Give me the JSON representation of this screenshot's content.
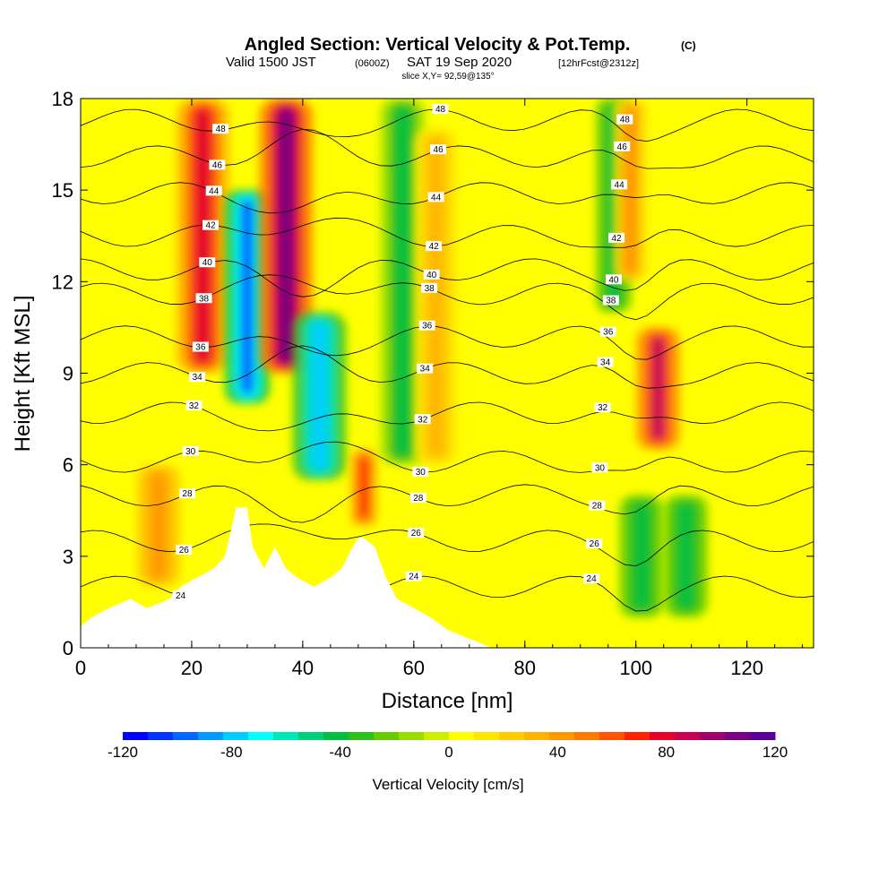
{
  "chart_data": {
    "type": "heatmap",
    "title": "Angled Section: Vertical Velocity & Pot.Temp.",
    "title_units": "(C)",
    "subtitle": {
      "valid_prefix": "Valid 1500 JST",
      "utc": "(0600Z)",
      "date": "SAT 19 Sep 2020",
      "forecast": "[12hrFcst@2312z]"
    },
    "slice": "slice X,Y= 92,59@135°",
    "xlabel": "Distance [nm]",
    "ylabel": "Height [Kft MSL]",
    "xlim": [
      0,
      132
    ],
    "ylim": [
      0,
      18
    ],
    "x_ticks": [
      "0",
      "20",
      "40",
      "60",
      "80",
      "100",
      "120"
    ],
    "x_tick_values": [
      0,
      20,
      40,
      60,
      80,
      100,
      120
    ],
    "y_ticks": [
      "0",
      "3",
      "6",
      "9",
      "12",
      "15",
      "18"
    ],
    "y_tick_values": [
      0,
      3,
      6,
      9,
      12,
      15,
      18
    ],
    "colorbar": {
      "label": "Vertical Velocity [cm/s]",
      "range": [
        -120,
        120
      ],
      "tick_labels": [
        "-120",
        "-80",
        "-40",
        "0",
        "40",
        "80",
        "120"
      ],
      "tick_values": [
        -120,
        -80,
        -40,
        0,
        40,
        80,
        120
      ],
      "colors": [
        "#0000ff",
        "#0033ff",
        "#0066ff",
        "#0099ff",
        "#00ccff",
        "#00ffff",
        "#00e6b8",
        "#00d07a",
        "#00bf40",
        "#2dbf1c",
        "#66cc00",
        "#99dd00",
        "#ccee00",
        "#ffff00",
        "#ffe600",
        "#ffcc00",
        "#ffb300",
        "#ff9900",
        "#ff7a00",
        "#ff5500",
        "#ff2200",
        "#e6002b",
        "#c80055",
        "#a0006e",
        "#780082",
        "#5a0096"
      ]
    },
    "theta_contours": [
      {
        "value": 24,
        "height_kft": 2.0,
        "label": "24"
      },
      {
        "value": 26,
        "height_kft": 3.5,
        "label": "26"
      },
      {
        "value": 28,
        "height_kft": 5.0,
        "label": "28"
      },
      {
        "value": 30,
        "height_kft": 6.1,
        "label": "30"
      },
      {
        "value": 32,
        "height_kft": 7.7,
        "label": "32"
      },
      {
        "value": 34,
        "height_kft": 9.0,
        "label": "34"
      },
      {
        "value": 36,
        "height_kft": 10.2,
        "label": "36"
      },
      {
        "value": 38,
        "height_kft": 11.6,
        "label": "38"
      },
      {
        "value": 40,
        "height_kft": 12.4,
        "label": "40"
      },
      {
        "value": 42,
        "height_kft": 13.5,
        "label": "42"
      },
      {
        "value": 44,
        "height_kft": 14.9,
        "label": "44"
      },
      {
        "value": 46,
        "height_kft": 16.1,
        "label": "46"
      },
      {
        "value": 48,
        "height_kft": 17.3,
        "label": "48"
      }
    ],
    "vertical_velocity_features": [
      {
        "x_nm": 14,
        "x_width_nm": 2.5,
        "z_bottom_kft": 2.0,
        "z_top_kft": 6.0,
        "w_cms": 45
      },
      {
        "x_nm": 22,
        "x_width_nm": 3.0,
        "z_bottom_kft": 9.0,
        "z_top_kft": 18.0,
        "w_cms": 80
      },
      {
        "x_nm": 30,
        "x_width_nm": 2.5,
        "z_bottom_kft": 8.0,
        "z_top_kft": 15.0,
        "w_cms": -95
      },
      {
        "x_nm": 37,
        "x_width_nm": 3.0,
        "z_bottom_kft": 9.0,
        "z_top_kft": 18.0,
        "w_cms": 110
      },
      {
        "x_nm": 43,
        "x_width_nm": 3.0,
        "z_bottom_kft": 5.5,
        "z_top_kft": 11.0,
        "w_cms": -80
      },
      {
        "x_nm": 51,
        "x_width_nm": 1.5,
        "z_bottom_kft": 4.0,
        "z_top_kft": 6.5,
        "w_cms": 70
      },
      {
        "x_nm": 58,
        "x_width_nm": 2.5,
        "z_bottom_kft": 6.0,
        "z_top_kft": 18.0,
        "w_cms": -40
      },
      {
        "x_nm": 64,
        "x_width_nm": 2.5,
        "z_bottom_kft": 6.0,
        "z_top_kft": 17.0,
        "w_cms": 35
      },
      {
        "x_nm": 96,
        "x_width_nm": 2.0,
        "z_bottom_kft": 11.0,
        "z_top_kft": 18.0,
        "w_cms": -45
      },
      {
        "x_nm": 99,
        "x_width_nm": 2.0,
        "z_bottom_kft": 12.0,
        "z_top_kft": 18.0,
        "w_cms": 40
      },
      {
        "x_nm": 104,
        "x_width_nm": 2.5,
        "z_bottom_kft": 6.5,
        "z_top_kft": 10.5,
        "w_cms": 85
      },
      {
        "x_nm": 101,
        "x_width_nm": 2.5,
        "z_bottom_kft": 1.0,
        "z_top_kft": 5.0,
        "w_cms": -45
      },
      {
        "x_nm": 109,
        "x_width_nm": 2.5,
        "z_bottom_kft": 1.0,
        "z_top_kft": 5.0,
        "w_cms": -45
      }
    ],
    "terrain_kft": [
      [
        0,
        0.7
      ],
      [
        2,
        1.0
      ],
      [
        5,
        1.3
      ],
      [
        9,
        1.6
      ],
      [
        12,
        1.3
      ],
      [
        16,
        1.6
      ],
      [
        18,
        2.0
      ],
      [
        21,
        2.3
      ],
      [
        24,
        2.6
      ],
      [
        26,
        3.0
      ],
      [
        28,
        4.6
      ],
      [
        30,
        4.6
      ],
      [
        31,
        3.3
      ],
      [
        33,
        2.6
      ],
      [
        35,
        3.3
      ],
      [
        37,
        2.6
      ],
      [
        39,
        2.3
      ],
      [
        42,
        2.0
      ],
      [
        45,
        2.3
      ],
      [
        47,
        2.6
      ],
      [
        49,
        3.3
      ],
      [
        50,
        3.6
      ],
      [
        51,
        3.6
      ],
      [
        53,
        3.3
      ],
      [
        55,
        2.3
      ],
      [
        57,
        1.6
      ],
      [
        60,
        1.3
      ],
      [
        63,
        1.0
      ],
      [
        66,
        0.6
      ],
      [
        70,
        0.3
      ],
      [
        74,
        0.0
      ]
    ],
    "grid": false,
    "legend": "colorbar-bottom"
  }
}
